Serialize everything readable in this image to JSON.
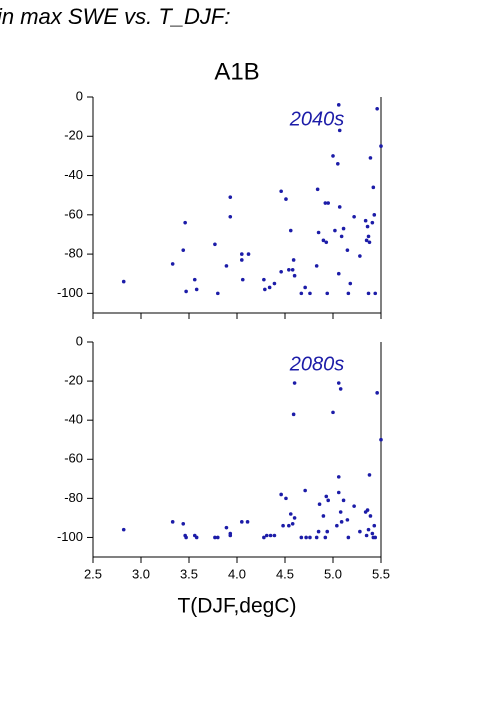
{
  "chart_data": [
    {
      "type": "scatter",
      "title": "in max SWE vs. T_DJF:",
      "subtitle": "A1B",
      "annotation": "2040s",
      "color": "#1c1ca8",
      "xlim": [
        2.5,
        5.5
      ],
      "ylim": [
        -110,
        0
      ],
      "yticks": [
        0,
        -20,
        -40,
        -60,
        -80,
        -100
      ],
      "x": [
        2.82,
        3.33,
        3.44,
        3.46,
        3.47,
        3.56,
        3.58,
        3.77,
        3.8,
        3.89,
        3.93,
        3.93,
        4.05,
        4.05,
        4.06,
        4.12,
        4.28,
        4.29,
        4.34,
        4.39,
        4.46,
        4.46,
        4.51,
        4.54,
        4.56,
        4.58,
        4.59,
        4.6,
        4.67,
        4.71,
        4.76,
        4.83,
        4.84,
        4.85,
        4.9,
        4.93,
        4.92,
        4.95,
        4.94,
        5.0,
        5.02,
        5.05,
        5.06,
        5.07,
        5.07,
        5.06,
        5.09,
        5.11,
        5.15,
        5.16,
        5.18,
        5.22,
        5.28,
        5.34,
        5.35,
        5.36,
        5.37,
        5.37,
        5.38,
        5.39,
        5.41,
        5.42,
        5.43,
        5.44,
        5.46,
        5.5
      ],
      "values": [
        -94,
        -85,
        -78,
        -64,
        -99,
        -93,
        -98,
        -75,
        -100,
        -86,
        -51,
        -61,
        -80,
        -83,
        -93,
        -80,
        -93,
        -98,
        -97,
        -95,
        -89,
        -48,
        -52,
        -88,
        -68,
        -88,
        -83,
        -91,
        -100,
        -97,
        -100,
        -86,
        -47,
        -69,
        -73,
        -74,
        -54,
        -54,
        -100,
        -30,
        -68,
        -34,
        -4,
        -17,
        -56,
        -90,
        -71,
        -67,
        -78,
        -100,
        -95,
        -61,
        -81,
        -63,
        -73,
        -66,
        -71,
        -100,
        -74,
        -31,
        -64,
        -46,
        -60,
        -100,
        -6,
        -25
      ]
    },
    {
      "type": "scatter",
      "annotation": "2080s",
      "x_label": "T(DJF,degC)",
      "color": "#1c1ca8",
      "xlim": [
        2.5,
        5.5
      ],
      "ylim": [
        -110,
        0
      ],
      "yticks": [
        0,
        -20,
        -40,
        -60,
        -80,
        -100
      ],
      "xticks": [
        2.5,
        {
          "value": 3,
          "label": "3.0"
        },
        3.5,
        {
          "value": 4,
          "label": "4.0"
        },
        4.5,
        {
          "value": 5,
          "label": "5.0"
        },
        5.5
      ],
      "x": [
        2.82,
        3.33,
        3.44,
        3.46,
        3.47,
        3.56,
        3.58,
        3.77,
        3.8,
        3.89,
        3.93,
        3.93,
        4.05,
        4.11,
        4.28,
        4.31,
        4.35,
        4.39,
        4.46,
        4.48,
        4.51,
        4.54,
        4.56,
        4.58,
        4.59,
        4.6,
        4.6,
        4.67,
        4.71,
        4.72,
        4.76,
        4.83,
        4.85,
        4.86,
        4.9,
        4.93,
        4.95,
        4.92,
        4.94,
        5.0,
        5.04,
        5.06,
        5.06,
        5.06,
        5.08,
        5.08,
        5.09,
        5.11,
        5.15,
        5.16,
        5.22,
        5.28,
        5.34,
        5.35,
        5.36,
        5.37,
        5.38,
        5.39,
        5.41,
        5.42,
        5.43,
        5.44,
        5.46,
        5.5
      ],
      "values": [
        -96,
        -92,
        -93,
        -99,
        -100,
        -99,
        -100,
        -100,
        -100,
        -95,
        -98,
        -99,
        -92,
        -92,
        -100,
        -99,
        -99,
        -99,
        -78,
        -94,
        -80,
        -94,
        -88,
        -93,
        -37,
        -21,
        -90,
        -100,
        -76,
        -100,
        -100,
        -100,
        -97,
        -83,
        -89,
        -79,
        -81,
        -100,
        -97,
        -36,
        -94,
        -69,
        -77,
        -21,
        -24,
        -87,
        -92,
        -81,
        -91,
        -100,
        -84,
        -97,
        -87,
        -99,
        -86,
        -96,
        -68,
        -89,
        -98,
        -100,
        -94,
        -100,
        -26,
        -50
      ]
    }
  ]
}
